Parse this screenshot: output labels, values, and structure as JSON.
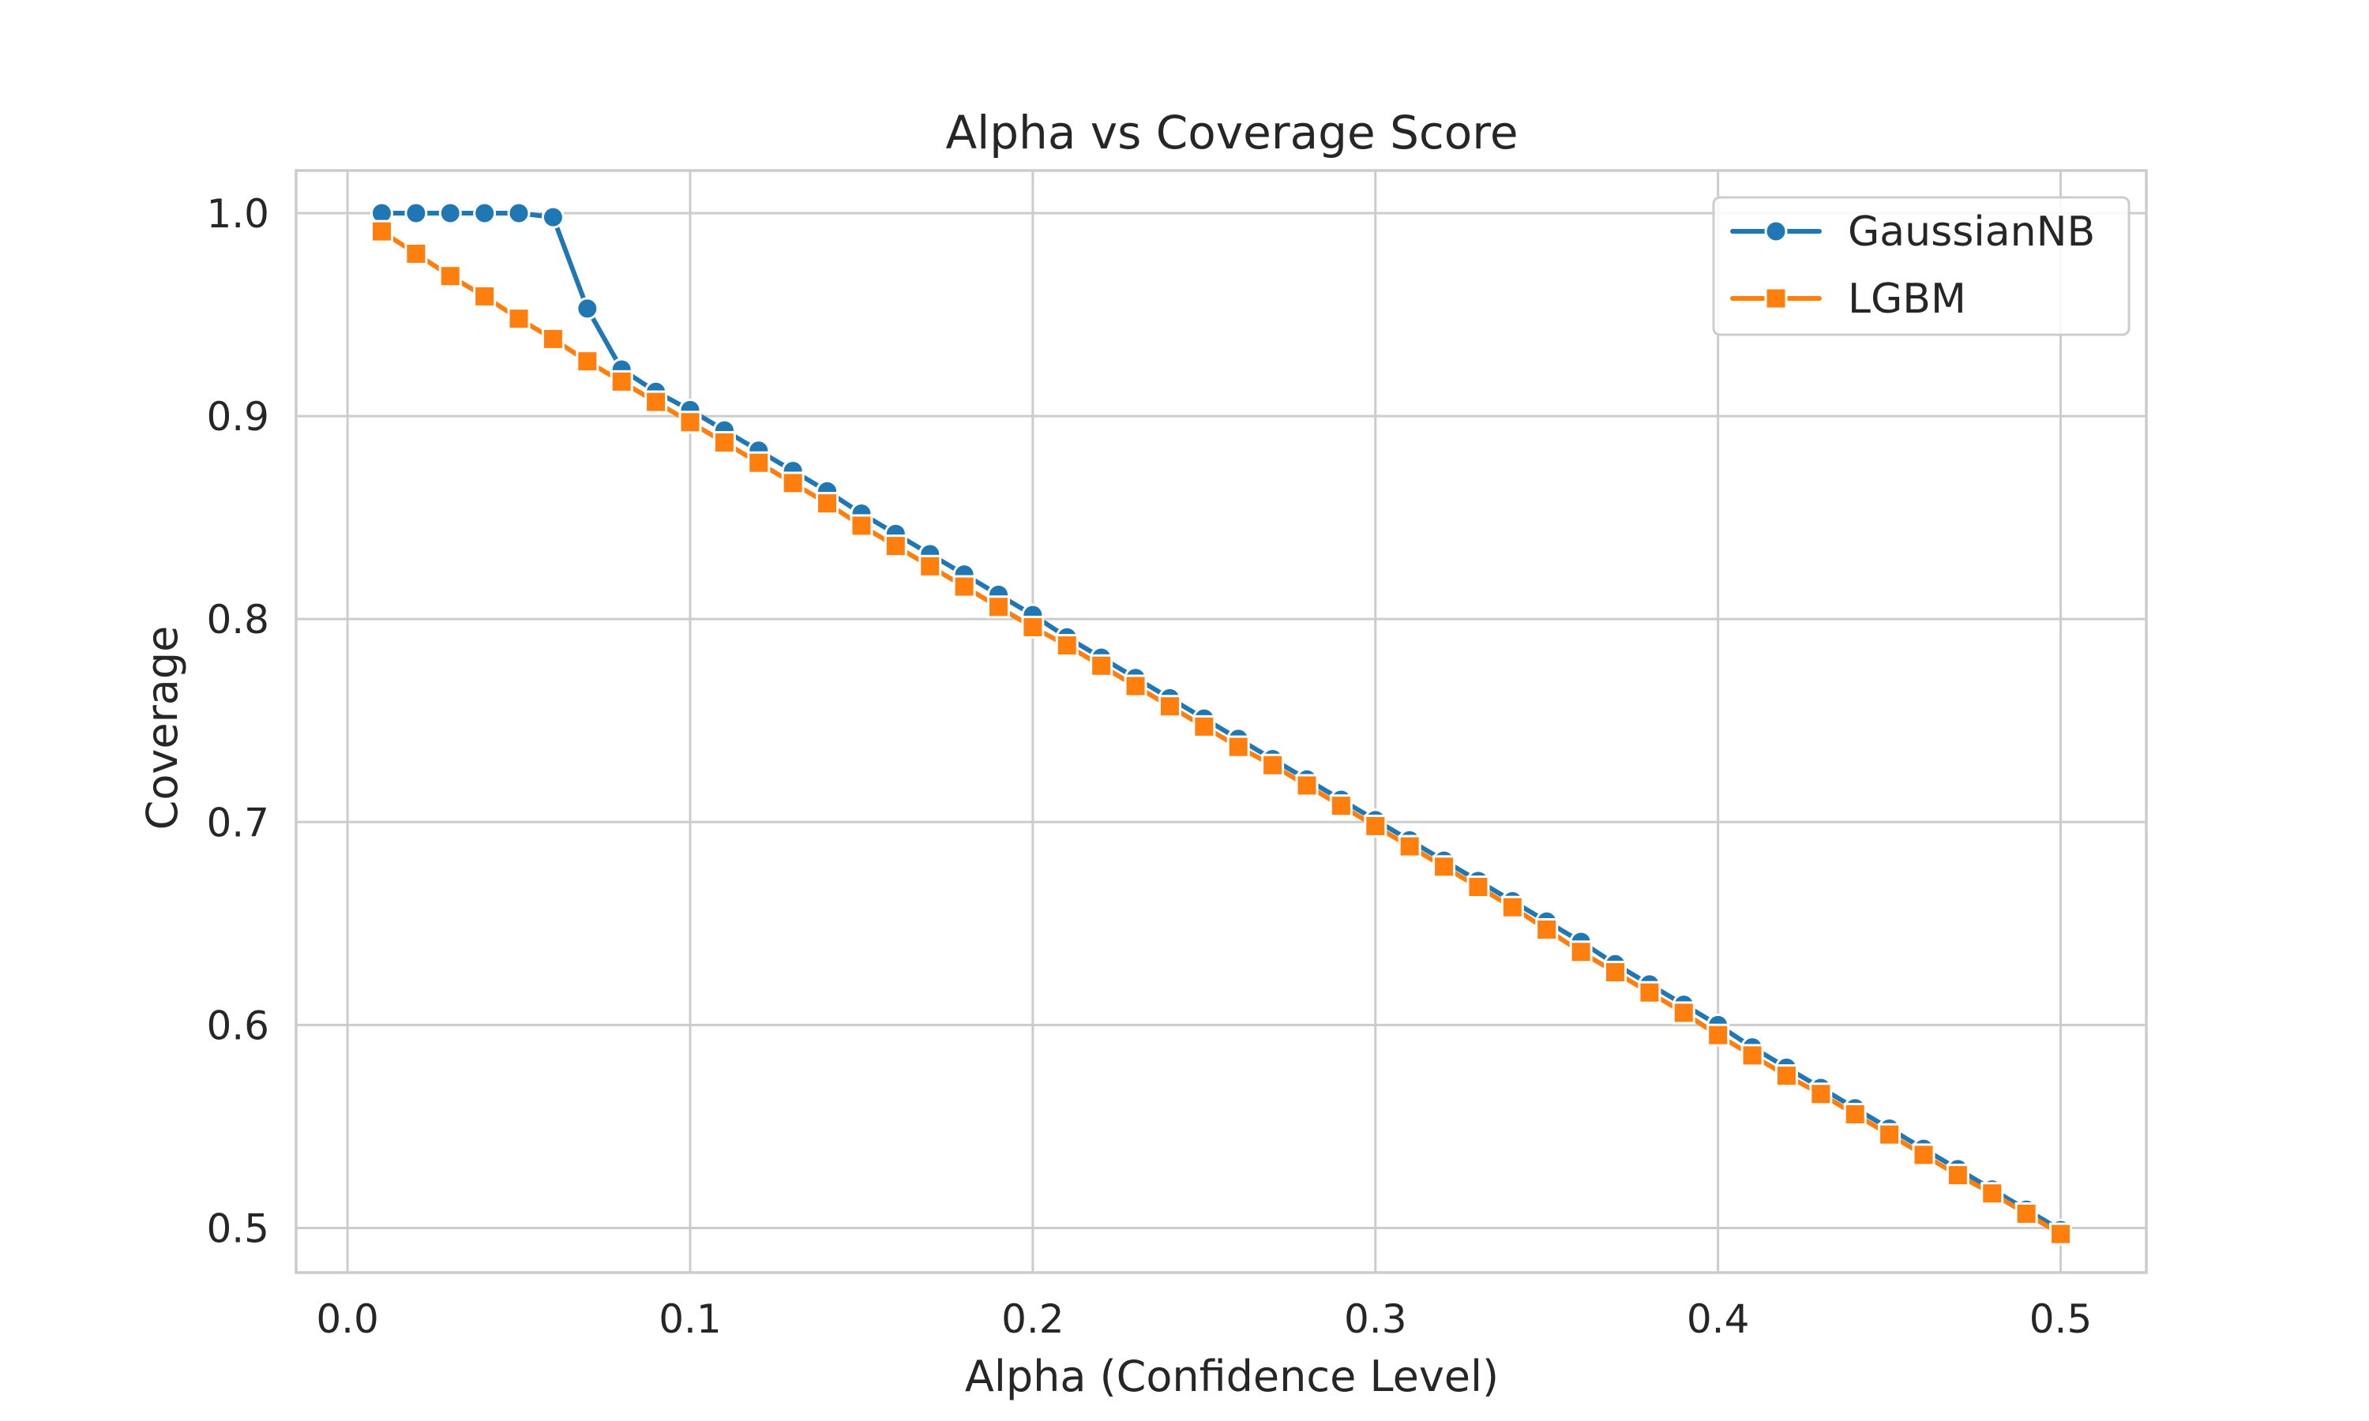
{
  "chart_data": {
    "type": "line",
    "title": "Alpha vs Coverage Score",
    "xlabel": "Alpha (Confidence Level)",
    "ylabel": "Coverage",
    "xlim": [
      -0.015,
      0.525
    ],
    "ylim": [
      0.478,
      1.021
    ],
    "xticks": [
      0.0,
      0.1,
      0.2,
      0.3,
      0.4,
      0.5
    ],
    "xtick_labels": [
      "0.0",
      "0.1",
      "0.2",
      "0.3",
      "0.4",
      "0.5"
    ],
    "yticks": [
      0.5,
      0.6,
      0.7,
      0.8,
      0.9,
      1.0
    ],
    "ytick_labels": [
      "0.5",
      "0.6",
      "0.7",
      "0.8",
      "0.9",
      "1.0"
    ],
    "grid": true,
    "legend_position": "top-right",
    "x": [
      0.01,
      0.02,
      0.03,
      0.04,
      0.05,
      0.06,
      0.07,
      0.08,
      0.09,
      0.1,
      0.11,
      0.12,
      0.13,
      0.14,
      0.15,
      0.16,
      0.17,
      0.18,
      0.19,
      0.2,
      0.21,
      0.22,
      0.23,
      0.24,
      0.25,
      0.26,
      0.27,
      0.28,
      0.29,
      0.3,
      0.31,
      0.32,
      0.33,
      0.34,
      0.35,
      0.36,
      0.37,
      0.38,
      0.39,
      0.4,
      0.41,
      0.42,
      0.43,
      0.44,
      0.45,
      0.46,
      0.47,
      0.48,
      0.49,
      0.5
    ],
    "series": [
      {
        "name": "GaussianNB",
        "color": "#1f77b4",
        "marker": "circle",
        "values": [
          1.0,
          1.0,
          1.0,
          1.0,
          1.0,
          0.998,
          0.953,
          0.923,
          0.912,
          0.903,
          0.893,
          0.883,
          0.873,
          0.863,
          0.852,
          0.842,
          0.832,
          0.822,
          0.812,
          0.802,
          0.791,
          0.781,
          0.771,
          0.761,
          0.751,
          0.741,
          0.731,
          0.721,
          0.711,
          0.701,
          0.691,
          0.681,
          0.671,
          0.661,
          0.651,
          0.641,
          0.63,
          0.62,
          0.61,
          0.6,
          0.589,
          0.579,
          0.569,
          0.559,
          0.549,
          0.539,
          0.529,
          0.519,
          0.509,
          0.499
        ]
      },
      {
        "name": "LGBM",
        "color": "#ff7f0e",
        "marker": "square",
        "values": [
          0.991,
          0.98,
          0.969,
          0.959,
          0.948,
          0.938,
          0.927,
          0.917,
          0.907,
          0.897,
          0.887,
          0.877,
          0.867,
          0.857,
          0.846,
          0.836,
          0.826,
          0.816,
          0.806,
          0.796,
          0.787,
          0.777,
          0.767,
          0.757,
          0.747,
          0.737,
          0.728,
          0.718,
          0.708,
          0.698,
          0.688,
          0.678,
          0.668,
          0.658,
          0.647,
          0.636,
          0.626,
          0.616,
          0.606,
          0.595,
          0.585,
          0.575,
          0.566,
          0.556,
          0.546,
          0.536,
          0.526,
          0.517,
          0.507,
          0.497
        ]
      }
    ]
  }
}
